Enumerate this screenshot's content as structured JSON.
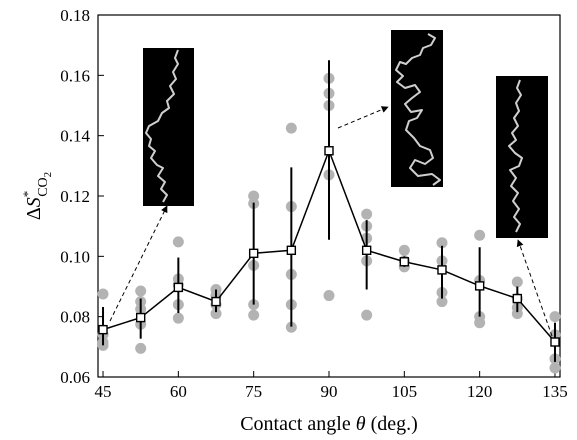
{
  "chart_data": {
    "type": "scatter",
    "title": "",
    "xlabel": "Contact angle θ (deg.)",
    "ylabel": "ΔS*CO2",
    "xlabel_parts": {
      "prefix": "Contact angle ",
      "symbol": "θ",
      "suffix": " (deg.)"
    },
    "ylabel_parts": {
      "delta": "Δ",
      "symbol": "S",
      "sup": "*",
      "sub": "CO",
      "sub2": "2"
    },
    "xlim": [
      44,
      136
    ],
    "ylim": [
      0.06,
      0.18
    ],
    "xticks": [
      45,
      60,
      75,
      90,
      105,
      120,
      135
    ],
    "xtick_labels": [
      "45",
      "60",
      "75",
      "90",
      "105",
      "120",
      "135"
    ],
    "yticks": [
      0.06,
      0.08,
      0.1,
      0.12,
      0.14,
      0.16,
      0.18
    ],
    "ytick_labels": [
      "0.06",
      "0.08",
      "0.10",
      "0.12",
      "0.14",
      "0.16",
      "0.18"
    ],
    "grid": false,
    "series": [
      {
        "marker": "open-square",
        "line": true,
        "errorbars": true,
        "points": [
          {
            "x": 45,
            "y": 0.0757,
            "low": 0.0705,
            "high": 0.0832
          },
          {
            "x": 52.5,
            "y": 0.0797,
            "low": 0.0727,
            "high": 0.086
          },
          {
            "x": 60,
            "y": 0.0897,
            "low": 0.0812,
            "high": 0.0996
          },
          {
            "x": 67.5,
            "y": 0.085,
            "low": 0.0815,
            "high": 0.089
          },
          {
            "x": 75,
            "y": 0.101,
            "low": 0.084,
            "high": 0.1178
          },
          {
            "x": 82.5,
            "y": 0.102,
            "low": 0.0767,
            "high": 0.1295
          },
          {
            "x": 90,
            "y": 0.135,
            "low": 0.1055,
            "high": 0.165
          },
          {
            "x": 97.5,
            "y": 0.102,
            "low": 0.089,
            "high": 0.112
          },
          {
            "x": 105,
            "y": 0.0982,
            "low": 0.0965,
            "high": 0.1
          },
          {
            "x": 112.5,
            "y": 0.0955,
            "low": 0.086,
            "high": 0.1035
          },
          {
            "x": 120,
            "y": 0.0902,
            "low": 0.08,
            "high": 0.103
          },
          {
            "x": 127.5,
            "y": 0.086,
            "low": 0.0815,
            "high": 0.09
          },
          {
            "x": 135,
            "y": 0.0716,
            "low": 0.065,
            "high": 0.078
          }
        ]
      },
      {
        "marker": "filled-circle",
        "color": "#b3b3b3",
        "points": [
          [
            45,
            0.0875
          ],
          [
            45,
            0.074
          ],
          [
            45,
            0.0715
          ],
          [
            45,
            0.0705
          ],
          [
            52.5,
            0.0885
          ],
          [
            52.5,
            0.085
          ],
          [
            52.5,
            0.0825
          ],
          [
            52.5,
            0.0775
          ],
          [
            52.5,
            0.0695
          ],
          [
            60,
            0.1048
          ],
          [
            60,
            0.0925
          ],
          [
            60,
            0.0905
          ],
          [
            60,
            0.084
          ],
          [
            60,
            0.0795
          ],
          [
            67.5,
            0.089
          ],
          [
            67.5,
            0.087
          ],
          [
            67.5,
            0.084
          ],
          [
            67.5,
            0.081
          ],
          [
            75,
            0.12
          ],
          [
            75,
            0.1175
          ],
          [
            75,
            0.097
          ],
          [
            75,
            0.084
          ],
          [
            75,
            0.0805
          ],
          [
            82.5,
            0.1425
          ],
          [
            82.5,
            0.1165
          ],
          [
            82.5,
            0.094
          ],
          [
            82.5,
            0.084
          ],
          [
            82.5,
            0.0765
          ],
          [
            90,
            0.159
          ],
          [
            90,
            0.154
          ],
          [
            90,
            0.15
          ],
          [
            90,
            0.127
          ],
          [
            90,
            0.087
          ],
          [
            97.5,
            0.114
          ],
          [
            97.5,
            0.11
          ],
          [
            97.5,
            0.106
          ],
          [
            97.5,
            0.0985
          ],
          [
            97.5,
            0.0805
          ],
          [
            105,
            0.102
          ],
          [
            105,
            0.0985
          ],
          [
            105,
            0.0965
          ],
          [
            112.5,
            0.1045
          ],
          [
            112.5,
            0.0985
          ],
          [
            112.5,
            0.088
          ],
          [
            112.5,
            0.085
          ],
          [
            120,
            0.107
          ],
          [
            120,
            0.092
          ],
          [
            120,
            0.08
          ],
          [
            120,
            0.078
          ],
          [
            127.5,
            0.0915
          ],
          [
            127.5,
            0.086
          ],
          [
            127.5,
            0.083
          ],
          [
            127.5,
            0.081
          ],
          [
            135,
            0.08
          ],
          [
            135,
            0.074
          ],
          [
            135,
            0.066
          ],
          [
            135,
            0.063
          ]
        ]
      }
    ],
    "insets": [
      {
        "content": "fractal-path-image",
        "anchor_x": 45,
        "anchor_y": 0.0757,
        "target": "bottom"
      },
      {
        "content": "fractal-path-image",
        "anchor_x": 90,
        "anchor_y": 0.135,
        "target": "left"
      },
      {
        "content": "fractal-path-image",
        "anchor_x": 135,
        "anchor_y": 0.0716,
        "target": "bottom"
      }
    ]
  }
}
